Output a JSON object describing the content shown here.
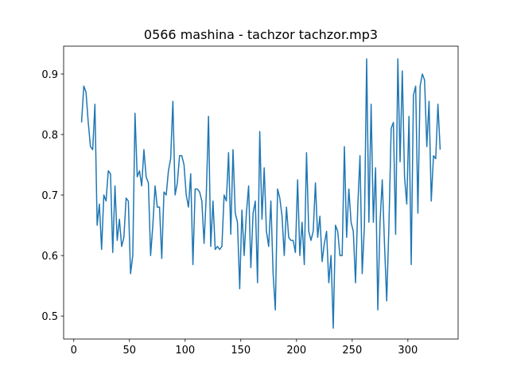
{
  "chart_data": {
    "type": "line",
    "title": "0566 mashina - tachzor tachzor.mp3",
    "x": [
      7,
      9,
      11,
      13,
      15,
      17,
      19,
      21,
      23,
      25,
      27,
      29,
      31,
      33,
      35,
      37,
      39,
      41,
      43,
      45,
      47,
      49,
      51,
      53,
      55,
      57,
      59,
      61,
      63,
      65,
      67,
      69,
      71,
      73,
      75,
      77,
      79,
      81,
      83,
      85,
      87,
      89,
      91,
      93,
      95,
      97,
      99,
      101,
      103,
      105,
      107,
      109,
      111,
      113,
      115,
      117,
      119,
      121,
      123,
      125,
      127,
      129,
      131,
      133,
      135,
      137,
      139,
      141,
      143,
      145,
      147,
      149,
      151,
      153,
      155,
      157,
      159,
      161,
      163,
      165,
      167,
      169,
      171,
      173,
      175,
      177,
      179,
      181,
      183,
      185,
      187,
      189,
      191,
      193,
      195,
      197,
      199,
      201,
      203,
      205,
      207,
      209,
      211,
      213,
      215,
      217,
      219,
      221,
      223,
      225,
      227,
      229,
      231,
      233,
      235,
      237,
      239,
      241,
      243,
      245,
      247,
      249,
      251,
      253,
      255,
      257,
      259,
      261,
      263,
      265,
      267,
      269,
      271,
      273,
      275,
      277,
      279,
      281,
      283,
      285,
      287,
      289,
      291,
      293,
      295,
      297,
      299,
      301,
      303,
      305,
      307,
      309,
      311,
      313,
      315,
      317,
      319,
      321,
      323,
      325,
      327,
      329
    ],
    "series": [
      {
        "color": "#1f77b4",
        "values": [
          0.82,
          0.88,
          0.87,
          0.82,
          0.78,
          0.775,
          0.85,
          0.65,
          0.685,
          0.61,
          0.7,
          0.69,
          0.74,
          0.735,
          0.605,
          0.715,
          0.625,
          0.66,
          0.615,
          0.63,
          0.695,
          0.69,
          0.57,
          0.6,
          0.835,
          0.73,
          0.74,
          0.715,
          0.775,
          0.73,
          0.72,
          0.6,
          0.65,
          0.715,
          0.68,
          0.68,
          0.595,
          0.705,
          0.7,
          0.74,
          0.76,
          0.855,
          0.7,
          0.72,
          0.765,
          0.765,
          0.75,
          0.7,
          0.68,
          0.735,
          0.585,
          0.71,
          0.71,
          0.705,
          0.69,
          0.62,
          0.7,
          0.83,
          0.615,
          0.69,
          0.61,
          0.615,
          0.61,
          0.615,
          0.7,
          0.69,
          0.77,
          0.635,
          0.775,
          0.67,
          0.655,
          0.545,
          0.675,
          0.6,
          0.67,
          0.715,
          0.58,
          0.67,
          0.69,
          0.555,
          0.805,
          0.66,
          0.745,
          0.64,
          0.615,
          0.69,
          0.57,
          0.51,
          0.71,
          0.695,
          0.665,
          0.6,
          0.68,
          0.63,
          0.625,
          0.625,
          0.605,
          0.725,
          0.6,
          0.655,
          0.585,
          0.77,
          0.64,
          0.625,
          0.64,
          0.72,
          0.63,
          0.665,
          0.59,
          0.62,
          0.64,
          0.555,
          0.6,
          0.48,
          0.65,
          0.64,
          0.6,
          0.6,
          0.78,
          0.63,
          0.71,
          0.655,
          0.64,
          0.555,
          0.68,
          0.765,
          0.57,
          0.65,
          0.925,
          0.655,
          0.85,
          0.655,
          0.745,
          0.51,
          0.655,
          0.725,
          0.62,
          0.525,
          0.65,
          0.81,
          0.82,
          0.635,
          0.925,
          0.755,
          0.905,
          0.73,
          0.685,
          0.83,
          0.585,
          0.865,
          0.88,
          0.67,
          0.88,
          0.9,
          0.89,
          0.78,
          0.855,
          0.69,
          0.765,
          0.76,
          0.85,
          0.775
        ]
      }
    ],
    "xlim": [
      -9.1,
      345.1
    ],
    "xticks": [
      0,
      50,
      100,
      150,
      200,
      250,
      300
    ],
    "ylim": [
      0.462,
      0.946
    ],
    "yticks": [
      0.5,
      0.6,
      0.7,
      0.8,
      0.9
    ]
  }
}
